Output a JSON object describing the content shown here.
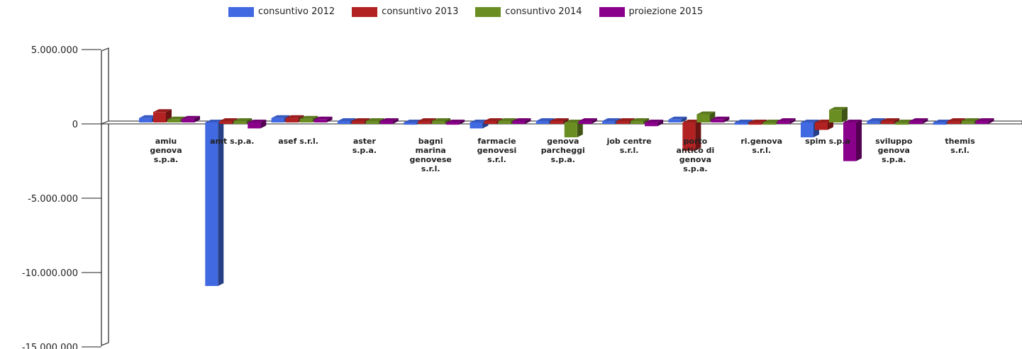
{
  "chart_data": {
    "type": "bar",
    "title": "",
    "xlabel": "",
    "ylabel": "",
    "ylim": [
      -15000000,
      5000000
    ],
    "yticks": [
      5000000,
      0,
      -5000000,
      -10000000,
      -15000000
    ],
    "ytick_labels": [
      "5.000.000",
      "0",
      "-5.000.000",
      "-10.000.000",
      "-15.000.000"
    ],
    "legend_position": "top",
    "grid": false,
    "categories": [
      [
        "amiu",
        "genova",
        "s.p.a."
      ],
      [
        "amt s.p.a."
      ],
      [
        "asef s.r.l."
      ],
      [
        "aster",
        "s.p.a."
      ],
      [
        "bagni",
        "marina",
        "genovese",
        "s.r.l."
      ],
      [
        "farmacie",
        "genovesi",
        "s.r.l."
      ],
      [
        "genova",
        "parcheggi",
        "s.p.a."
      ],
      [
        "job centre",
        "s.r.l."
      ],
      [
        "porto",
        "antico di",
        "genova",
        "s.p.a."
      ],
      [
        "ri.genova",
        "s.r.l."
      ],
      [
        "spim s.p.a"
      ],
      [
        "sviluppo",
        "genova",
        "s.p.a."
      ],
      [
        "themis",
        "s.r.l."
      ]
    ],
    "series": [
      {
        "name": "consuntivo 2012",
        "color": "#4169e1",
        "values": [
          300000,
          -11000000,
          300000,
          50000,
          -150000,
          -400000,
          50000,
          50000,
          200000,
          -150000,
          -1000000,
          100000,
          -150000
        ]
      },
      {
        "name": "consuntivo 2013",
        "color": "#b22222",
        "values": [
          700000,
          50000,
          300000,
          50000,
          50000,
          50000,
          50000,
          50000,
          -1900000,
          -150000,
          -500000,
          50000,
          -100000
        ]
      },
      {
        "name": "consuntivo 2014",
        "color": "#6b8e23",
        "values": [
          200000,
          100000,
          250000,
          50000,
          100000,
          50000,
          -1000000,
          -100000,
          550000,
          -150000,
          850000,
          -150000,
          100000
        ]
      },
      {
        "name": "proiezione 2015",
        "color": "#8b008b",
        "values": [
          250000,
          -400000,
          200000,
          50000,
          -150000,
          50000,
          50000,
          -250000,
          200000,
          50000,
          -2600000,
          100000,
          0
        ]
      }
    ]
  }
}
